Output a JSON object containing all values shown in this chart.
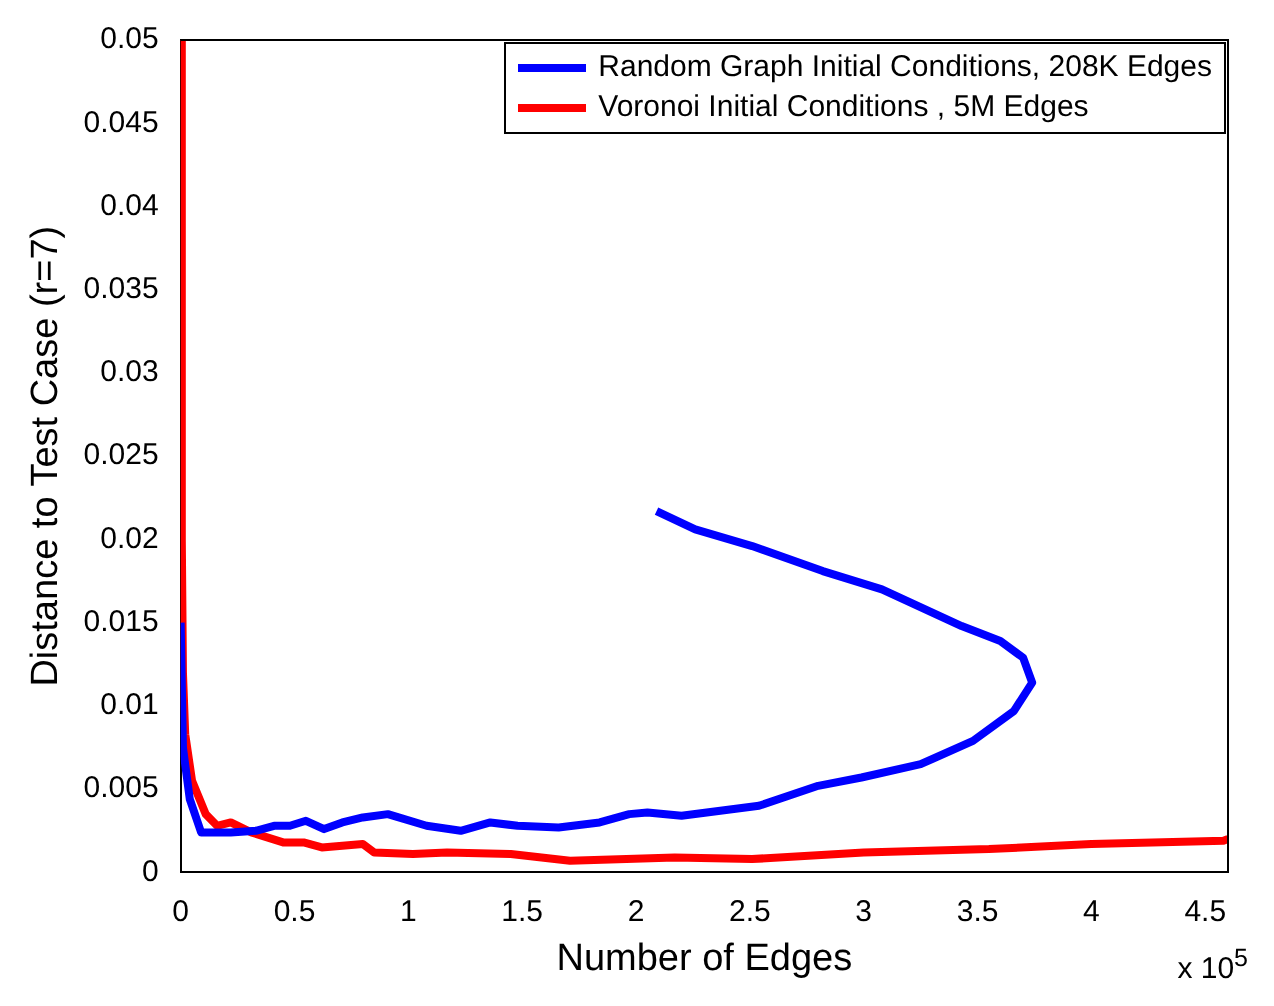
{
  "chart_data": {
    "type": "line",
    "xlabel": "Number of Edges",
    "ylabel": "Distance to Test Case (r=7)",
    "annotations": [
      "x 10$^{5}$"
    ],
    "xlim": [
      0,
      4.6
    ],
    "xticks": [
      0,
      0.5,
      1,
      1.5,
      2,
      2.5,
      3,
      3.5,
      4,
      4.5
    ],
    "ylim": [
      0,
      0.05
    ],
    "yticks": [
      0,
      0.005,
      0.01,
      0.015,
      0.02,
      0.025,
      0.03,
      0.035,
      0.04,
      0.045,
      0.05
    ],
    "grid": false,
    "legend": "top right",
    "marker": "none",
    "line_style": "solid",
    "series": [
      {
        "name": "Random Graph Initial Conditions, 208K Edges",
        "color": "#0000ff",
        "x": [
          0.0,
          0.01,
          0.04,
          0.09,
          0.22,
          0.33,
          0.41,
          0.48,
          0.55,
          0.63,
          0.71,
          0.8,
          0.91,
          1.08,
          1.23,
          1.36,
          1.48,
          1.66,
          1.84,
          1.97,
          2.05,
          2.2,
          2.54,
          2.8,
          2.99,
          3.25,
          3.48,
          3.66,
          3.74,
          3.7,
          3.6,
          3.43,
          3.08,
          2.82,
          2.51,
          2.26,
          2.09
        ],
        "values": [
          0.015,
          0.0075,
          0.0044,
          0.0024,
          0.0024,
          0.0025,
          0.0028,
          0.0028,
          0.0031,
          0.0026,
          0.003,
          0.0033,
          0.0035,
          0.0028,
          0.0025,
          0.003,
          0.0028,
          0.0027,
          0.003,
          0.0035,
          0.0036,
          0.0034,
          0.004,
          0.0052,
          0.0057,
          0.0065,
          0.0079,
          0.0097,
          0.0114,
          0.0129,
          0.0139,
          0.0148,
          0.017,
          0.0181,
          0.0196,
          0.0206,
          0.0217
        ]
      },
      {
        "name": "Voronoi Initial Conditions , 5M Edges",
        "color": "#ff0000",
        "x": [
          0.0,
          0.005,
          0.01,
          0.02,
          0.05,
          0.11,
          0.16,
          0.22,
          0.31,
          0.45,
          0.54,
          0.62,
          0.8,
          0.85,
          1.02,
          1.17,
          1.45,
          1.71,
          2.17,
          2.51,
          3.0,
          3.55,
          4.0,
          4.58,
          4.6
        ],
        "values": [
          0.05,
          0.02,
          0.012,
          0.0083,
          0.0055,
          0.0035,
          0.0028,
          0.003,
          0.0024,
          0.0018,
          0.0018,
          0.0015,
          0.0017,
          0.0012,
          0.0011,
          0.0012,
          0.0011,
          0.0007,
          0.0009,
          0.0008,
          0.0012,
          0.0014,
          0.0017,
          0.0019,
          0.002
        ]
      }
    ]
  }
}
